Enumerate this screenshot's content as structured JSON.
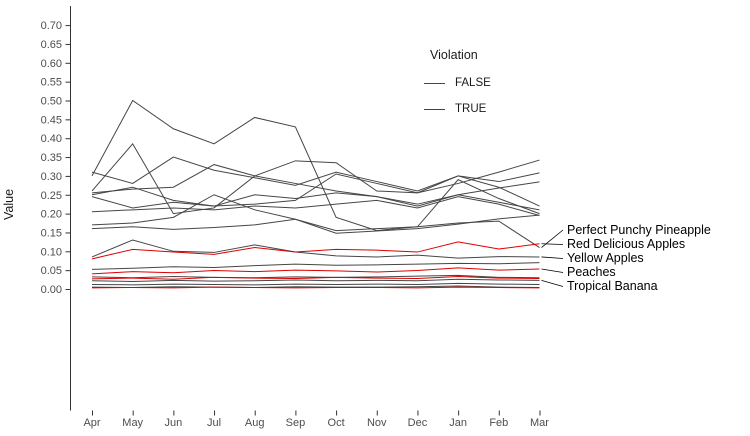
{
  "chart_data": {
    "type": "line",
    "title": "",
    "ylabel": "Value",
    "xlabel": "",
    "ylim": [
      0.0,
      0.7
    ],
    "yticks": [
      0.7,
      0.65,
      0.6,
      0.55,
      0.5,
      0.45,
      0.4,
      0.35,
      0.3,
      0.25,
      0.2,
      0.15,
      0.1,
      0.05,
      0.0
    ],
    "x_categories": [
      "Apr",
      "May",
      "Jun",
      "Jul",
      "Aug",
      "Sep",
      "Oct",
      "Nov",
      "Dec",
      "Jan",
      "Feb",
      "Mar"
    ],
    "grid": "off",
    "legend": {
      "title": "Violation",
      "position": "inside-top-right",
      "entries": [
        {
          "label": "FALSE",
          "color": "#464646"
        },
        {
          "label": "TRUE",
          "color": "#dd0000"
        }
      ]
    },
    "series": [
      {
        "violation": "FALSE",
        "end_label": "Perfect Punchy Pineapple",
        "values": [
          0.3,
          0.5,
          0.425,
          0.385,
          0.455,
          0.43,
          0.19,
          0.155,
          0.165,
          0.175,
          0.18,
          0.11
        ]
      },
      {
        "violation": "FALSE",
        "values": [
          0.26,
          0.385,
          0.2,
          0.215,
          0.3,
          0.34,
          0.335,
          0.26,
          0.255,
          0.28,
          0.31,
          0.342
        ]
      },
      {
        "violation": "FALSE",
        "values": [
          0.31,
          0.28,
          0.35,
          0.315,
          0.295,
          0.275,
          0.31,
          0.285,
          0.26,
          0.3,
          0.285,
          0.308
        ]
      },
      {
        "violation": "FALSE",
        "values": [
          0.255,
          0.265,
          0.27,
          0.33,
          0.3,
          0.28,
          0.26,
          0.245,
          0.225,
          0.25,
          0.268,
          0.284
        ]
      },
      {
        "violation": "FALSE",
        "values": [
          0.25,
          0.27,
          0.235,
          0.22,
          0.225,
          0.235,
          0.305,
          0.28,
          0.255,
          0.3,
          0.27,
          0.22
        ]
      },
      {
        "violation": "FALSE",
        "values": [
          0.245,
          0.215,
          0.23,
          0.22,
          0.25,
          0.24,
          0.255,
          0.245,
          0.22,
          0.25,
          0.23,
          0.21
        ]
      },
      {
        "violation": "FALSE",
        "values": [
          0.205,
          0.21,
          0.215,
          0.21,
          0.22,
          0.215,
          0.225,
          0.235,
          0.215,
          0.245,
          0.225,
          0.195
        ]
      },
      {
        "violation": "FALSE",
        "values": [
          0.17,
          0.175,
          0.19,
          0.25,
          0.21,
          0.185,
          0.155,
          0.16,
          0.165,
          0.29,
          0.24,
          0.2
        ]
      },
      {
        "violation": "FALSE",
        "values": [
          0.16,
          0.165,
          0.158,
          0.163,
          0.17,
          0.185,
          0.148,
          0.154,
          0.16,
          0.172,
          0.186,
          0.196
        ]
      },
      {
        "violation": "FALSE",
        "end_label": "Yellow Apples",
        "values": [
          0.085,
          0.13,
          0.1,
          0.097,
          0.117,
          0.098,
          0.088,
          0.085,
          0.09,
          0.082,
          0.086,
          0.085
        ]
      },
      {
        "violation": "FALSE",
        "values": [
          0.052,
          0.055,
          0.059,
          0.057,
          0.062,
          0.066,
          0.063,
          0.064,
          0.066,
          0.068,
          0.067,
          0.07
        ]
      },
      {
        "violation": "FALSE",
        "values": [
          0.032,
          0.03,
          0.033,
          0.031,
          0.03,
          0.032,
          0.031,
          0.032,
          0.034,
          0.036,
          0.031,
          0.03
        ]
      },
      {
        "violation": "FALSE",
        "end_label": "Tropical Banana",
        "values": [
          0.022,
          0.02,
          0.023,
          0.021,
          0.022,
          0.024,
          0.022,
          0.023,
          0.022,
          0.026,
          0.024,
          0.023
        ]
      },
      {
        "violation": "FALSE",
        "values": [
          0.012,
          0.011,
          0.013,
          0.012,
          0.011,
          0.013,
          0.012,
          0.013,
          0.012,
          0.015,
          0.013,
          0.012
        ]
      },
      {
        "violation": "FALSE",
        "values": [
          0.005,
          0.004,
          0.006,
          0.005,
          0.004,
          0.006,
          0.005,
          0.005,
          0.006,
          0.008,
          0.005,
          0.004
        ]
      },
      {
        "violation": "TRUE",
        "end_label": "Red Delicious Apples",
        "values": [
          0.08,
          0.105,
          0.098,
          0.092,
          0.11,
          0.098,
          0.105,
          0.103,
          0.098,
          0.125,
          0.106,
          0.12
        ]
      },
      {
        "violation": "TRUE",
        "end_label": "Peaches",
        "values": [
          0.04,
          0.046,
          0.043,
          0.049,
          0.046,
          0.05,
          0.048,
          0.045,
          0.049,
          0.056,
          0.05,
          0.053
        ]
      },
      {
        "violation": "TRUE",
        "values": [
          0.027,
          0.029,
          0.026,
          0.031,
          0.029,
          0.028,
          0.031,
          0.029,
          0.028,
          0.033,
          0.029,
          0.028
        ]
      },
      {
        "violation": "TRUE",
        "values": [
          0.003,
          0.004,
          0.003,
          0.005,
          0.004,
          0.003,
          0.004,
          0.004,
          0.003,
          0.005,
          0.004,
          0.003
        ]
      }
    ],
    "end_labels": [
      {
        "text": "Perfect Punchy Pineapple",
        "series": 0
      },
      {
        "text": "Red Delicious Apples",
        "series": 15
      },
      {
        "text": "Yellow Apples",
        "series": 9
      },
      {
        "text": "Peaches",
        "series": 16
      },
      {
        "text": "Tropical Banana",
        "series": 12
      }
    ]
  }
}
